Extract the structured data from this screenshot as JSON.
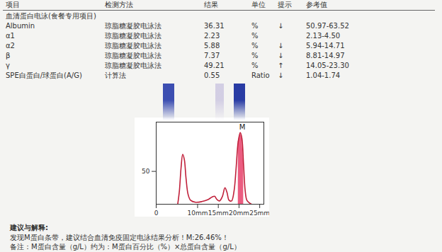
{
  "header": [
    "项目",
    "检测方法",
    "结果",
    "单位",
    "提示",
    "参考值"
  ],
  "section": "血清蛋白电泳(食餐专用项目)",
  "rows": [
    [
      "Albumin",
      "琼脂糖凝胶电泳法",
      "36.31",
      "%",
      "↓",
      "50.97-63.52"
    ],
    [
      "α1",
      "琼脂糖凝胶电泳法",
      "2.23",
      "%",
      "",
      "2.13-4.50"
    ],
    [
      "α2",
      "琼脂糖凝胶电泳法",
      "5.88",
      "%",
      "↓",
      "5.94-14.71"
    ],
    [
      "β",
      "琼脂糖凝胶电泳法",
      "7.37",
      "%",
      "↓",
      "8.81-14.97"
    ],
    [
      "γ",
      "琼脂糖凝胶电泳法",
      "49.21",
      "%",
      "↑",
      "14.05-23.30"
    ],
    [
      "SPE白蛋白/球蛋白(A/G)",
      "计算法",
      "0.55",
      "Ratio",
      "↓",
      "1.04-1.74"
    ]
  ],
  "chart_data": {
    "type": "line",
    "color": "#c0203a",
    "annotation": "M",
    "highlight": {
      "x_range": [
        19.7,
        21.4
      ],
      "color": "#e8406a"
    },
    "x": [
      5.2,
      5.6,
      6.0,
      6.4,
      6.8,
      7.2,
      7.7,
      8.3,
      9.5,
      11,
      12.5,
      13.5,
      14.1,
      14.7,
      15.3,
      16.0,
      16.6,
      17.1,
      17.6,
      18.2,
      18.8,
      19.3,
      19.8,
      20.3,
      20.7,
      21.1,
      21.5,
      21.9,
      22.5,
      23.0
    ],
    "values": [
      0,
      20,
      55,
      76,
      68,
      40,
      15,
      6,
      3,
      4,
      7,
      11,
      12,
      7,
      5,
      12,
      25,
      18,
      6,
      5,
      20,
      55,
      95,
      109,
      100,
      60,
      20,
      6,
      2,
      0
    ],
    "xlim": [
      0,
      26
    ],
    "xticks": [
      0,
      {
        "value": 10,
        "label": "10mm"
      },
      {
        "value": 15,
        "label": "15mm"
      },
      {
        "value": 20,
        "label": "20mm"
      },
      {
        "value": 25,
        "label": "25mm"
      }
    ],
    "ylim": [
      0,
      125
    ],
    "yticks": [
      50
    ]
  },
  "comment": {
    "title": "建议与解释:",
    "lines": [
      "发现M蛋白条带，建议结合血清免疫固定电泳结果分析！M:26.46%！",
      "备注：M蛋白含量（g/L）约为：M蛋白百分比（%）×总蛋白含量（g/L）"
    ]
  }
}
